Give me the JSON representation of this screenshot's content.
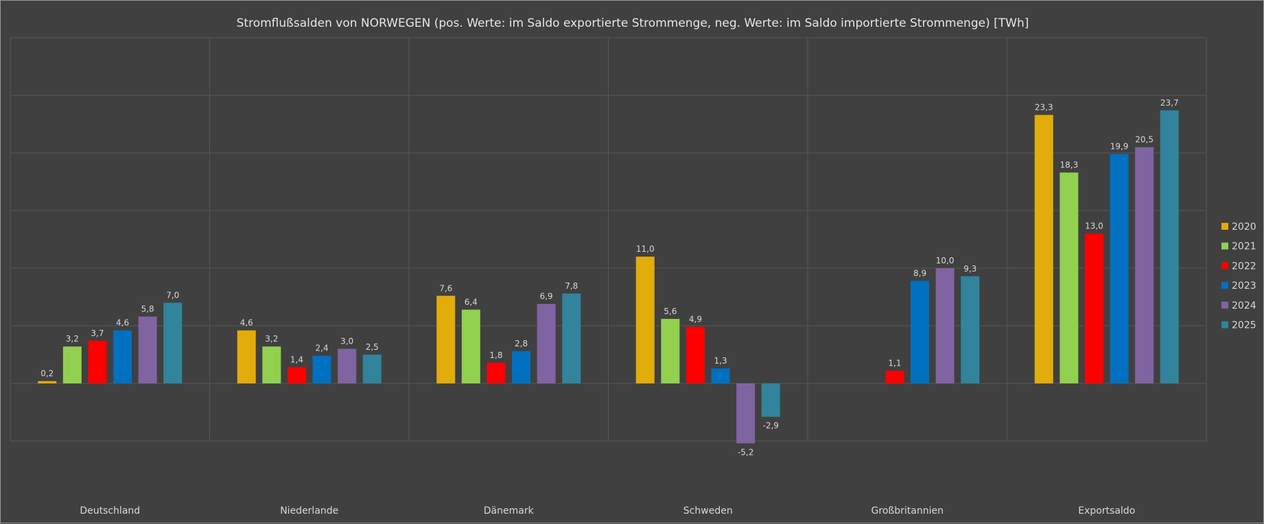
{
  "chart_data": {
    "type": "bar",
    "title": "Stromflußsalden von NORWEGEN (pos. Werte: im Saldo exportierte Strommenge, neg. Werte: im Saldo importierte Strommenge) [TWh]",
    "xlabel": "",
    "ylabel": "",
    "ylim": [
      -5,
      30
    ],
    "grid": true,
    "legend_position": "right",
    "categories": [
      "Deutschland",
      "Niederlande",
      "Dänemark",
      "Schweden",
      "Großbritannien",
      "Exportsaldo"
    ],
    "series": [
      {
        "name": "2020",
        "color": "#E2AC0B",
        "values": [
          0.2,
          4.6,
          7.6,
          11.0,
          null,
          23.3
        ]
      },
      {
        "name": "2021",
        "color": "#92D050",
        "values": [
          3.2,
          3.2,
          6.4,
          5.6,
          null,
          18.3
        ]
      },
      {
        "name": "2022",
        "color": "#FF0000",
        "values": [
          3.7,
          1.4,
          1.8,
          4.9,
          1.1,
          13.0
        ]
      },
      {
        "name": "2023",
        "color": "#0070C0",
        "values": [
          4.6,
          2.4,
          2.8,
          1.3,
          8.9,
          19.9
        ]
      },
      {
        "name": "2024",
        "color": "#8064A2",
        "values": [
          5.8,
          3.0,
          6.9,
          -5.2,
          10.0,
          20.5
        ]
      },
      {
        "name": "2025",
        "color": "#31849B",
        "values": [
          7.0,
          2.5,
          7.8,
          -2.9,
          9.3,
          23.7
        ]
      }
    ]
  }
}
